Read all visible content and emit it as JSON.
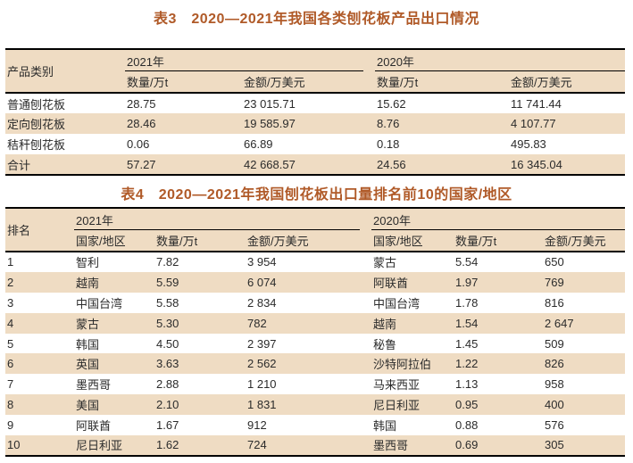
{
  "colors": {
    "title_text": "#b05a28",
    "band_background": "#efdcc3",
    "body_text": "#2b2b2b",
    "rule_lines": "#000000",
    "page_background": "#ffffff"
  },
  "table3": {
    "title": "表3　2020—2021年我国各类刨花板产品出口情况",
    "col1_header": "产品类别",
    "year_groups": [
      "2021年",
      "2020年"
    ],
    "sub_headers": [
      "数量/万t",
      "金额/万美元",
      "数量/万t",
      "金额/万美元"
    ],
    "rows": [
      {
        "label": "普通刨花板",
        "values": [
          "28.75",
          "23 015.71",
          "15.62",
          "11 741.44"
        ]
      },
      {
        "label": "定向刨花板",
        "values": [
          "28.46",
          "19 585.97",
          "8.76",
          "4 107.77"
        ]
      },
      {
        "label": "秸秆刨花板",
        "values": [
          "0.06",
          "66.89",
          "0.18",
          "495.83"
        ]
      },
      {
        "label": "合计",
        "values": [
          "57.27",
          "42 668.57",
          "24.56",
          "16 345.04"
        ]
      }
    ]
  },
  "table4": {
    "title": "表4　2020—2021年我国刨花板出口量排名前10的国家/地区",
    "col1_header": "排名",
    "year_groups": [
      "2021年",
      "2020年"
    ],
    "sub_headers": [
      "国家/地区",
      "数量/万t",
      "金额/万美元",
      "国家/地区",
      "数量/万t",
      "金额/万美元"
    ],
    "rows": [
      {
        "rank": "1",
        "values": [
          "智利",
          "7.82",
          "3 954",
          "蒙古",
          "5.54",
          "650"
        ]
      },
      {
        "rank": "2",
        "values": [
          "越南",
          "5.59",
          "6 074",
          "阿联酋",
          "1.97",
          "769"
        ]
      },
      {
        "rank": "3",
        "values": [
          "中国台湾",
          "5.58",
          "2 834",
          "中国台湾",
          "1.78",
          "816"
        ]
      },
      {
        "rank": "4",
        "values": [
          "蒙古",
          "5.30",
          "782",
          "越南",
          "1.54",
          "2 647"
        ]
      },
      {
        "rank": "5",
        "values": [
          "韩国",
          "4.50",
          "2 397",
          "秘鲁",
          "1.45",
          "509"
        ]
      },
      {
        "rank": "6",
        "values": [
          "英国",
          "3.63",
          "2 562",
          "沙特阿拉伯",
          "1.22",
          "826"
        ]
      },
      {
        "rank": "7",
        "values": [
          "墨西哥",
          "2.88",
          "1 210",
          "马来西亚",
          "1.13",
          "958"
        ]
      },
      {
        "rank": "8",
        "values": [
          "美国",
          "2.10",
          "1 831",
          "尼日利亚",
          "0.95",
          "400"
        ]
      },
      {
        "rank": "9",
        "values": [
          "阿联酋",
          "1.67",
          "912",
          "韩国",
          "0.88",
          "576"
        ]
      },
      {
        "rank": "10",
        "values": [
          "尼日利亚",
          "1.62",
          "724",
          "墨西哥",
          "0.69",
          "305"
        ]
      }
    ]
  }
}
